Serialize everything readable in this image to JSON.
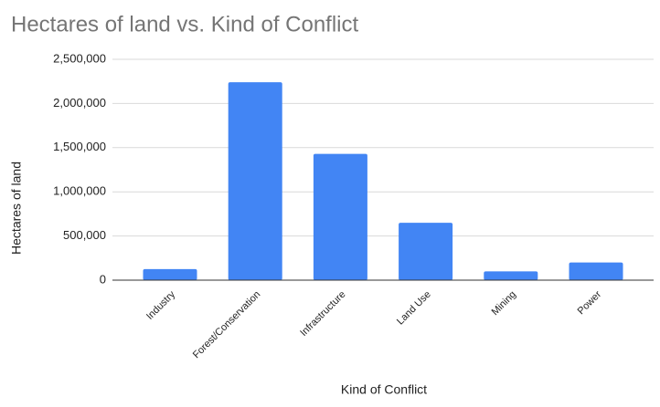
{
  "chart_data": {
    "type": "bar",
    "title": "Hectares of land vs. Kind of Conflict",
    "x_label": "Kind of Conflict",
    "y_label": "Hectares of land",
    "categories": [
      "Industry",
      "Forest/Conservation",
      "Infrastructure",
      "Land Use",
      "Mining",
      "Power"
    ],
    "values": [
      125000,
      2240000,
      1430000,
      650000,
      100000,
      200000
    ],
    "color": "#4285f4",
    "ylim": [
      0,
      2500000
    ],
    "yticks": [
      0,
      {
        "value": 500000,
        "label": "500,000"
      },
      {
        "value": 1000000,
        "label": "1,000,000"
      },
      {
        "value": 1500000,
        "label": "1,500,000"
      },
      {
        "value": 2000000,
        "label": "2,000,000"
      },
      {
        "value": 2500000,
        "label": "2,500,000"
      }
    ],
    "grid": true
  }
}
